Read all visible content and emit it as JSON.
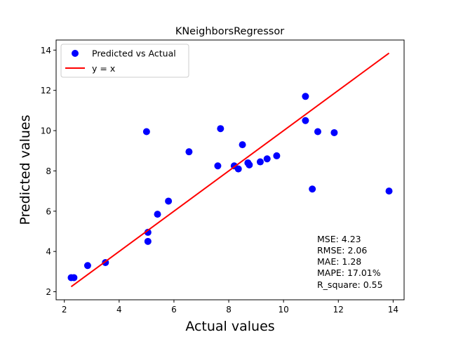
{
  "chart_data": {
    "type": "scatter",
    "title": "KNeighborsRegressor",
    "xlabel": "Actual values",
    "ylabel": "Predicted values",
    "xlim": [
      1.7,
      14.4
    ],
    "ylim": [
      1.6,
      14.5
    ],
    "xticks": [
      2,
      4,
      6,
      8,
      10,
      12,
      14
    ],
    "yticks": [
      2,
      4,
      6,
      8,
      10,
      12,
      14
    ],
    "grid": false,
    "legend_position": "top-left",
    "colors": {
      "points": "#0000ff",
      "line": "#ff0000"
    },
    "series": [
      {
        "name": "Predicted vs Actual",
        "kind": "scatter",
        "x": [
          2.25,
          2.35,
          2.85,
          3.5,
          5.0,
          5.05,
          5.05,
          5.4,
          5.8,
          6.55,
          7.6,
          7.7,
          8.2,
          8.35,
          8.5,
          8.7,
          8.75,
          9.15,
          9.4,
          9.75,
          10.8,
          10.8,
          11.05,
          11.25,
          11.85,
          13.85
        ],
        "y": [
          2.7,
          2.7,
          3.3,
          3.45,
          9.95,
          4.95,
          4.5,
          5.85,
          6.5,
          8.95,
          8.25,
          10.1,
          8.25,
          8.1,
          9.3,
          8.4,
          8.3,
          8.45,
          8.6,
          8.75,
          11.7,
          10.5,
          7.1,
          9.95,
          9.9,
          7.0
        ]
      },
      {
        "name": "y = x",
        "kind": "line",
        "x": [
          2.25,
          13.85
        ],
        "y": [
          2.25,
          13.85
        ]
      }
    ],
    "metrics": [
      "MSE: 4.23",
      "RMSE: 2.06",
      "MAE: 1.28",
      "MAPE: 17.01%",
      "R_square: 0.55"
    ]
  }
}
